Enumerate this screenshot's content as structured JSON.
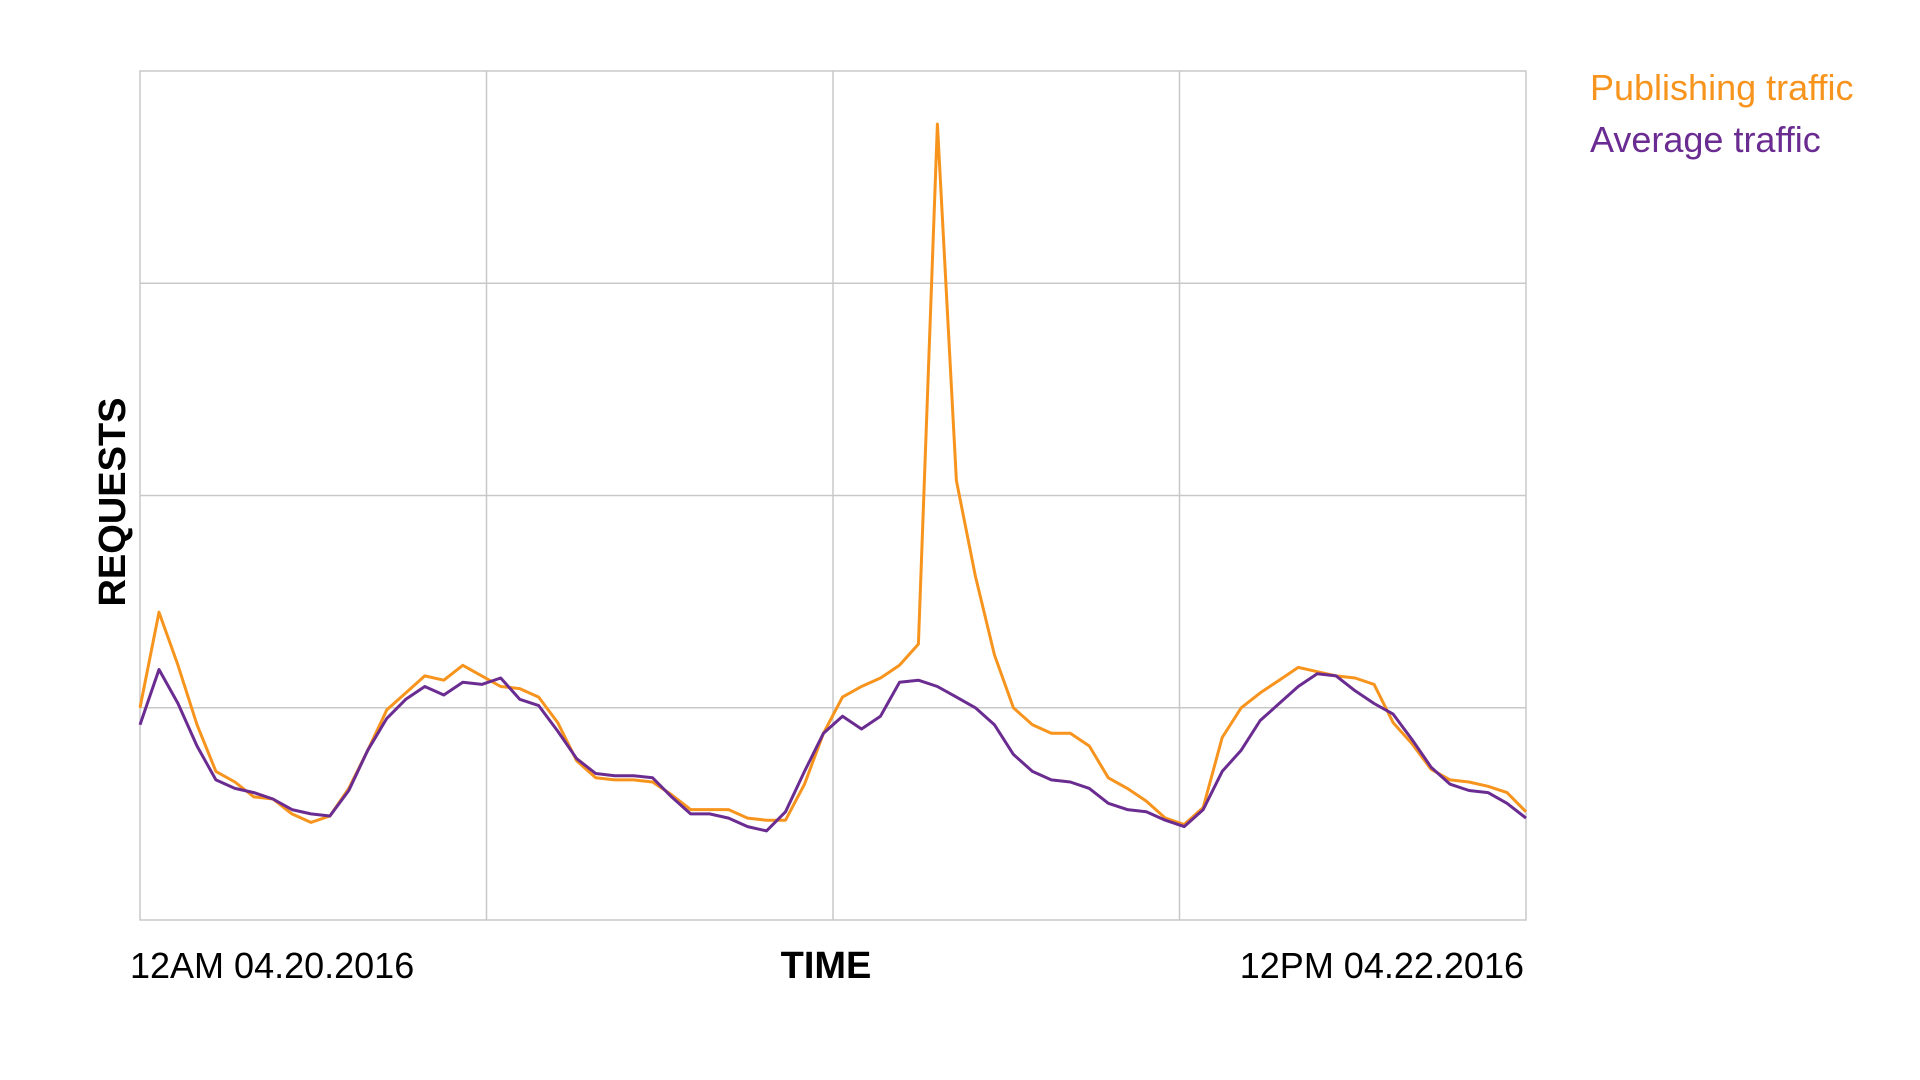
{
  "chart_data": {
    "type": "line",
    "title": "",
    "xlabel": "TIME",
    "ylabel": "REQUESTS",
    "x_start_label": "12AM 04.20.2016",
    "x_end_label": "12PM 04.22.2016",
    "y_range": [
      0,
      4
    ],
    "grid": true,
    "legend_position": "top-right",
    "series": [
      {
        "name": "Publishing traffic",
        "color": "#F7941D",
        "points": [
          [
            0,
            1.0
          ],
          [
            0.5,
            1.45
          ],
          [
            1,
            1.2
          ],
          [
            1.5,
            0.92
          ],
          [
            2,
            0.7
          ],
          [
            2.5,
            0.65
          ],
          [
            3,
            0.58
          ],
          [
            3.5,
            0.57
          ],
          [
            4,
            0.5
          ],
          [
            4.5,
            0.46
          ],
          [
            5,
            0.49
          ],
          [
            5.5,
            0.62
          ],
          [
            6,
            0.8
          ],
          [
            6.5,
            0.99
          ],
          [
            7,
            1.07
          ],
          [
            7.5,
            1.15
          ],
          [
            8,
            1.13
          ],
          [
            8.5,
            1.2
          ],
          [
            9,
            1.15
          ],
          [
            9.5,
            1.1
          ],
          [
            10,
            1.09
          ],
          [
            10.5,
            1.05
          ],
          [
            11,
            0.93
          ],
          [
            11.5,
            0.75
          ],
          [
            12,
            0.67
          ],
          [
            12.5,
            0.66
          ],
          [
            13,
            0.66
          ],
          [
            13.5,
            0.65
          ],
          [
            14,
            0.59
          ],
          [
            14.5,
            0.52
          ],
          [
            15,
            0.52
          ],
          [
            15.5,
            0.52
          ],
          [
            16,
            0.48
          ],
          [
            16.5,
            0.47
          ],
          [
            17,
            0.47
          ],
          [
            17.5,
            0.64
          ],
          [
            18,
            0.88
          ],
          [
            18.5,
            1.05
          ],
          [
            19,
            1.1
          ],
          [
            19.5,
            1.14
          ],
          [
            20,
            1.2
          ],
          [
            20.5,
            1.3
          ],
          [
            21,
            3.75
          ],
          [
            21.5,
            2.07
          ],
          [
            22,
            1.62
          ],
          [
            22.5,
            1.25
          ],
          [
            23,
            1.0
          ],
          [
            23.5,
            0.92
          ],
          [
            24,
            0.88
          ],
          [
            24.5,
            0.88
          ],
          [
            25,
            0.82
          ],
          [
            25.5,
            0.67
          ],
          [
            26,
            0.62
          ],
          [
            26.5,
            0.56
          ],
          [
            27,
            0.48
          ],
          [
            27.5,
            0.45
          ],
          [
            28,
            0.53
          ],
          [
            28.5,
            0.86
          ],
          [
            29,
            1.0
          ],
          [
            29.5,
            1.07
          ],
          [
            30,
            1.13
          ],
          [
            30.5,
            1.19
          ],
          [
            31,
            1.17
          ],
          [
            31.5,
            1.15
          ],
          [
            32,
            1.14
          ],
          [
            32.5,
            1.11
          ],
          [
            33,
            0.93
          ],
          [
            33.5,
            0.83
          ],
          [
            34,
            0.71
          ],
          [
            34.5,
            0.66
          ],
          [
            35,
            0.65
          ],
          [
            35.5,
            0.63
          ],
          [
            36,
            0.6
          ],
          [
            36.5,
            0.51
          ]
        ]
      },
      {
        "name": "Average traffic",
        "color": "#6A2C91",
        "points": [
          [
            0,
            0.92
          ],
          [
            0.5,
            1.18
          ],
          [
            1,
            1.02
          ],
          [
            1.5,
            0.82
          ],
          [
            2,
            0.66
          ],
          [
            2.5,
            0.62
          ],
          [
            3,
            0.6
          ],
          [
            3.5,
            0.57
          ],
          [
            4,
            0.52
          ],
          [
            4.5,
            0.5
          ],
          [
            5,
            0.49
          ],
          [
            5.5,
            0.61
          ],
          [
            6,
            0.8
          ],
          [
            6.5,
            0.95
          ],
          [
            7,
            1.04
          ],
          [
            7.5,
            1.1
          ],
          [
            8,
            1.06
          ],
          [
            8.5,
            1.12
          ],
          [
            9,
            1.11
          ],
          [
            9.5,
            1.14
          ],
          [
            10,
            1.04
          ],
          [
            10.5,
            1.01
          ],
          [
            11,
            0.89
          ],
          [
            11.5,
            0.76
          ],
          [
            12,
            0.69
          ],
          [
            12.5,
            0.68
          ],
          [
            13,
            0.68
          ],
          [
            13.5,
            0.67
          ],
          [
            14,
            0.58
          ],
          [
            14.5,
            0.5
          ],
          [
            15,
            0.5
          ],
          [
            15.5,
            0.48
          ],
          [
            16,
            0.44
          ],
          [
            16.5,
            0.42
          ],
          [
            17,
            0.51
          ],
          [
            17.5,
            0.7
          ],
          [
            18,
            0.88
          ],
          [
            18.5,
            0.96
          ],
          [
            19,
            0.9
          ],
          [
            19.5,
            0.96
          ],
          [
            20,
            1.12
          ],
          [
            20.5,
            1.13
          ],
          [
            21,
            1.1
          ],
          [
            21.5,
            1.05
          ],
          [
            22,
            1.0
          ],
          [
            22.5,
            0.92
          ],
          [
            23,
            0.78
          ],
          [
            23.5,
            0.7
          ],
          [
            24,
            0.66
          ],
          [
            24.5,
            0.65
          ],
          [
            25,
            0.62
          ],
          [
            25.5,
            0.55
          ],
          [
            26,
            0.52
          ],
          [
            26.5,
            0.51
          ],
          [
            27,
            0.47
          ],
          [
            27.5,
            0.44
          ],
          [
            28,
            0.52
          ],
          [
            28.5,
            0.7
          ],
          [
            29,
            0.8
          ],
          [
            29.5,
            0.94
          ],
          [
            30,
            1.02
          ],
          [
            30.5,
            1.1
          ],
          [
            31,
            1.16
          ],
          [
            31.5,
            1.15
          ],
          [
            32,
            1.08
          ],
          [
            32.5,
            1.02
          ],
          [
            33,
            0.97
          ],
          [
            33.5,
            0.85
          ],
          [
            34,
            0.72
          ],
          [
            34.5,
            0.64
          ],
          [
            35,
            0.61
          ],
          [
            35.5,
            0.6
          ],
          [
            36,
            0.55
          ],
          [
            36.5,
            0.48
          ]
        ]
      }
    ]
  }
}
